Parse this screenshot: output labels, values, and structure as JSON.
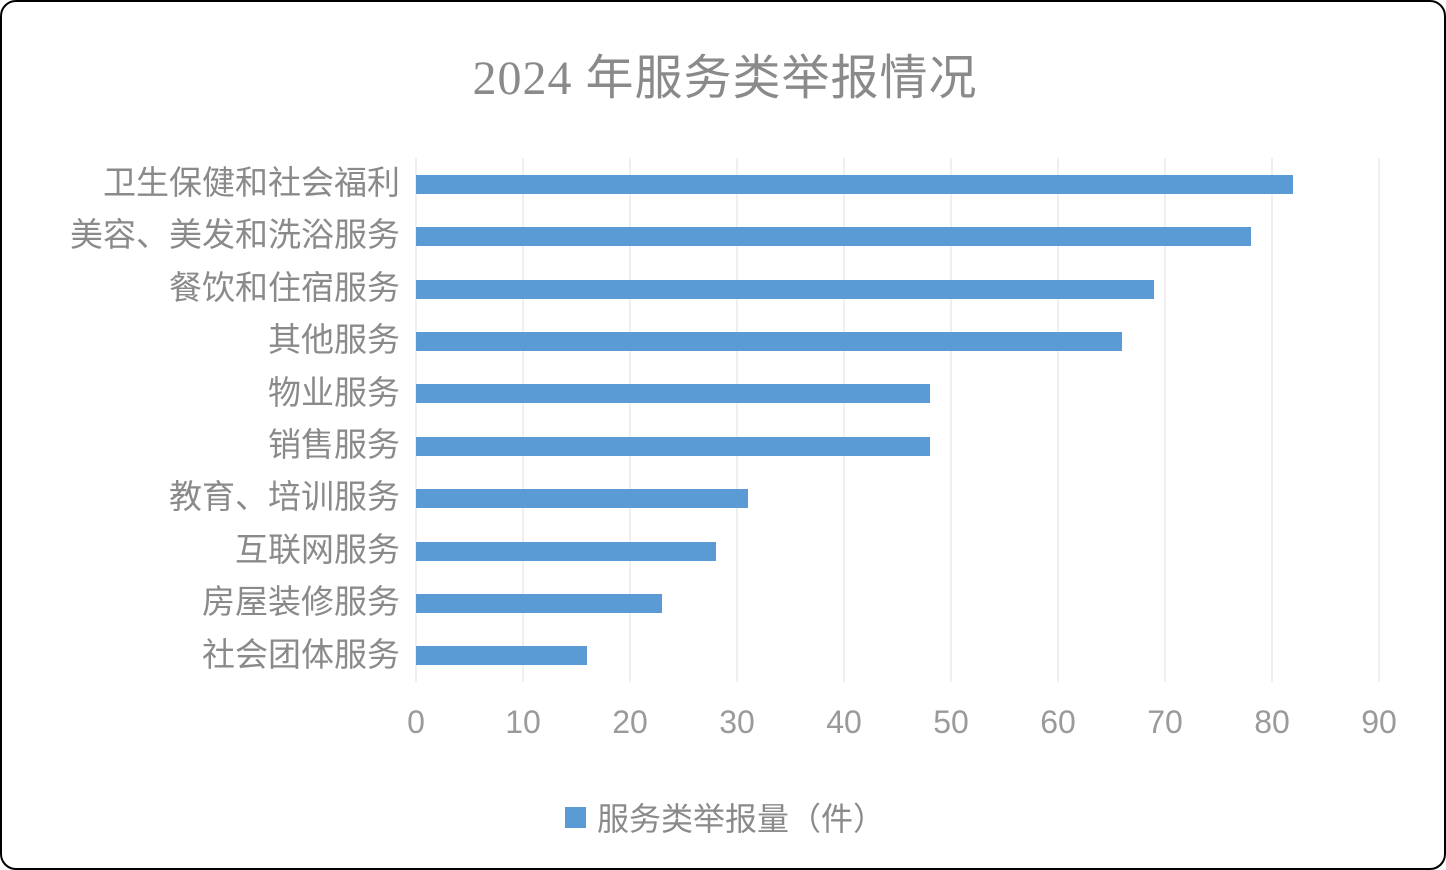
{
  "chart_data": {
    "type": "bar",
    "orientation": "horizontal",
    "title": "2024 年服务类举报情况",
    "categories": [
      "卫生保健和社会福利",
      "美容、美发和洗浴服务",
      "餐饮和住宿服务",
      "其他服务",
      "物业服务",
      "销售服务",
      "教育、培训服务",
      "互联网服务",
      "房屋装修服务",
      "社会团体服务"
    ],
    "values": [
      82,
      78,
      69,
      66,
      48,
      48,
      31,
      28,
      23,
      16
    ],
    "series": [
      {
        "name": "服务类举报量（件）",
        "values": [
          82,
          78,
          69,
          66,
          48,
          48,
          31,
          28,
          23,
          16
        ]
      }
    ],
    "xlabel": "",
    "ylabel": "",
    "xlim": [
      0,
      90
    ],
    "xticks": [
      0,
      10,
      20,
      30,
      40,
      50,
      60,
      70,
      80,
      90
    ],
    "grid": "vertical-major-on",
    "legend_position": "bottom-center",
    "colors": {
      "bar": "#5b9bd5",
      "gridline": "#efefef",
      "title_text": "#8a8a8a",
      "label_text": "#8a8a8a",
      "tick_text": "#9a9a9a"
    }
  },
  "legend": {
    "label": "服务类举报量（件）"
  }
}
